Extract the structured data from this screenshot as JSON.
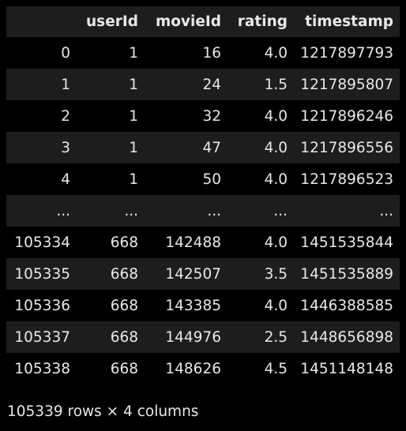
{
  "table": {
    "columns": [
      "",
      "userId",
      "movieId",
      "rating",
      "timestamp"
    ],
    "rows": [
      [
        "0",
        "1",
        "16",
        "4.0",
        "1217897793"
      ],
      [
        "1",
        "1",
        "24",
        "1.5",
        "1217895807"
      ],
      [
        "2",
        "1",
        "32",
        "4.0",
        "1217896246"
      ],
      [
        "3",
        "1",
        "47",
        "4.0",
        "1217896556"
      ],
      [
        "4",
        "1",
        "50",
        "4.0",
        "1217896523"
      ],
      [
        "...",
        "...",
        "...",
        "...",
        "..."
      ],
      [
        "105334",
        "668",
        "142488",
        "4.0",
        "1451535844"
      ],
      [
        "105335",
        "668",
        "142507",
        "3.5",
        "1451535889"
      ],
      [
        "105336",
        "668",
        "143385",
        "4.0",
        "1446388585"
      ],
      [
        "105337",
        "668",
        "144976",
        "2.5",
        "1448656898"
      ],
      [
        "105338",
        "668",
        "148626",
        "4.5",
        "1451148148"
      ]
    ]
  },
  "summary": "105339 rows × 4 columns",
  "colors": {
    "background": "#000000",
    "stripe": "#1d1d1d",
    "text": "#e8e8e8"
  }
}
